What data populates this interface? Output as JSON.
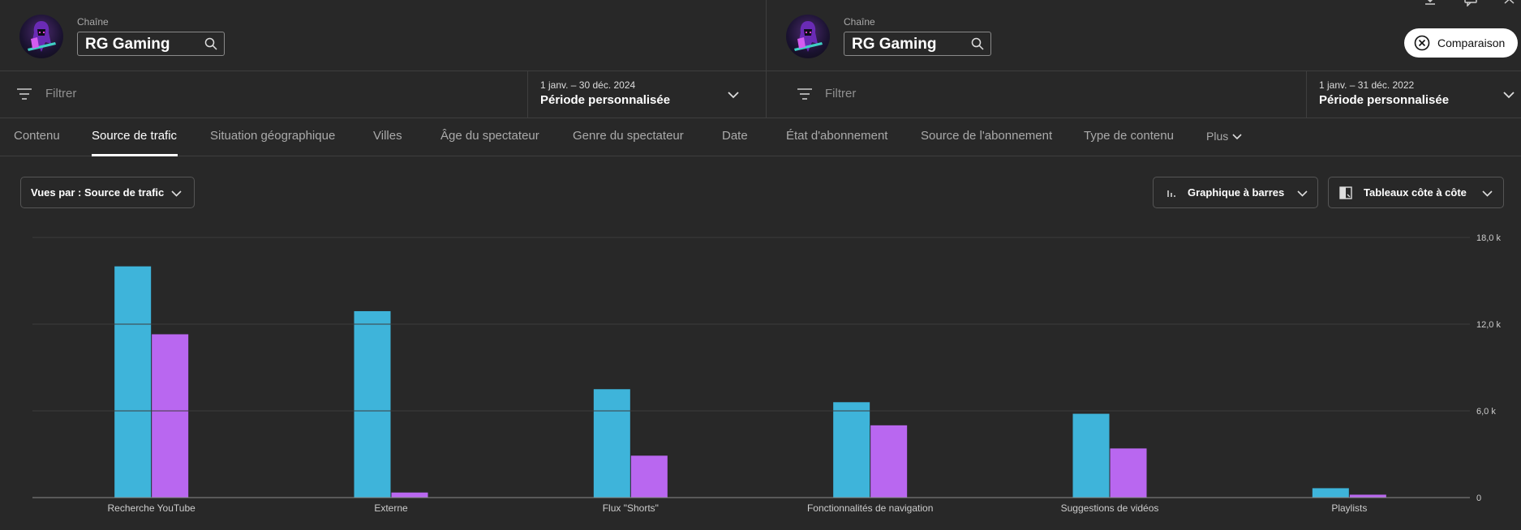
{
  "left_panel": {
    "channel_label": "Chaîne",
    "channel_name": "RG Gaming",
    "filter_placeholder": "Filtrer",
    "date_range": "1 janv. – 30 déc. 2024",
    "date_period": "Période personnalisée"
  },
  "right_panel": {
    "channel_label": "Chaîne",
    "channel_name": "RG Gaming",
    "filter_placeholder": "Filtrer",
    "date_range": "1 janv. – 31 déc. 2022",
    "date_period": "Période personnalisée"
  },
  "compare_button_label": "Comparaison",
  "tabs": [
    {
      "label": "Contenu",
      "active": false
    },
    {
      "label": "Source de trafic",
      "active": true
    },
    {
      "label": "Situation géographique",
      "active": false
    },
    {
      "label": "Villes",
      "active": false
    },
    {
      "label": "Âge du spectateur",
      "active": false
    },
    {
      "label": "Genre du spectateur",
      "active": false
    },
    {
      "label": "Date",
      "active": false
    },
    {
      "label": "État d'abonnement",
      "active": false
    },
    {
      "label": "Source de l'abonnement",
      "active": false
    },
    {
      "label": "Type de contenu",
      "active": false
    },
    {
      "label": "Plus",
      "active": false
    }
  ],
  "controls": {
    "views_by": "Vues par : Source de trafic",
    "chart_type": "Graphique à barres",
    "tables_layout": "Tableaux côte à côte"
  },
  "icons": {
    "search": "search-icon",
    "filter": "filter-icon",
    "close": "close-circle-icon",
    "chevron": "chevron-down-icon",
    "bar_chart": "bar-chart-icon",
    "side_by_side": "side-by-side-icon",
    "download": "download-icon",
    "feedback": "feedback-icon"
  },
  "colors": {
    "series_2024": "#3eb4da",
    "series_2022": "#b967f0",
    "background": "#282828"
  },
  "chart_data": {
    "type": "bar",
    "categories": [
      "Recherche YouTube",
      "Externe",
      "Flux \"Shorts\"",
      "Fonctionnalités de navigation",
      "Suggestions de vidéos",
      "Playlists"
    ],
    "series": [
      {
        "values": [
          16000,
          12900,
          7500,
          6600,
          5800,
          650
        ]
      },
      {
        "values": [
          11300,
          350,
          2900,
          5000,
          3400,
          200
        ]
      }
    ],
    "ylim": [
      0,
      18000
    ],
    "yticks": [
      "0",
      "6,0 k",
      "12,0 k",
      "18,0 k"
    ],
    "ytick_values": [
      0,
      6000,
      12000,
      18000
    ],
    "grid": true,
    "xlabel": "",
    "ylabel": ""
  }
}
